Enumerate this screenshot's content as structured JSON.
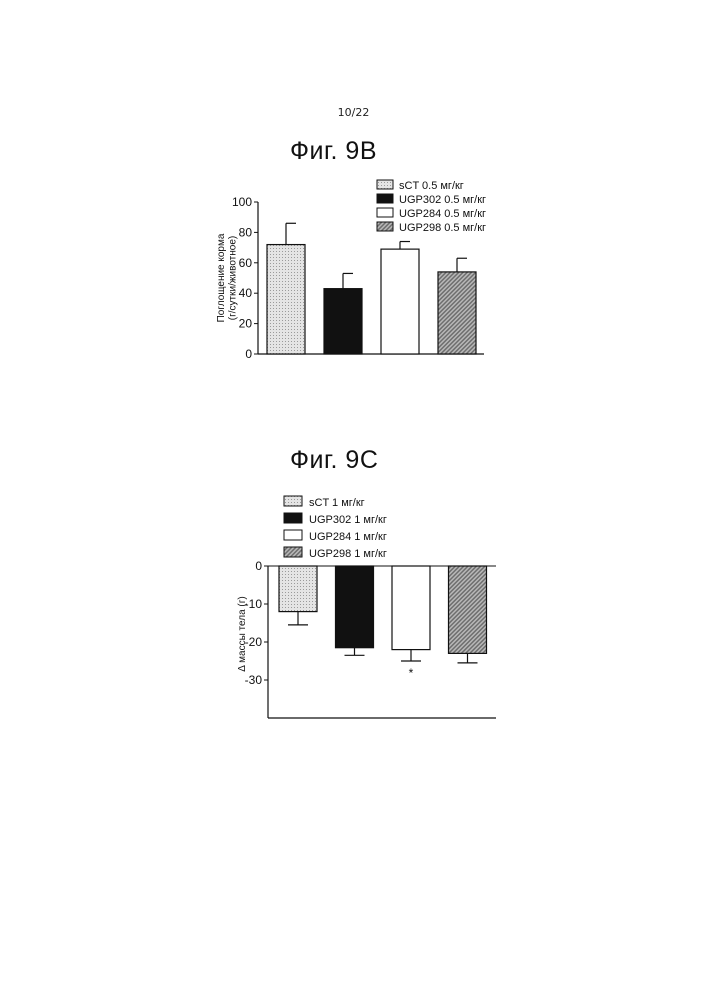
{
  "page_number": "10/22",
  "chart_data": [
    {
      "type": "bar",
      "title": "Фиг. 9B",
      "ylabel": "Поглощение корма (г/сутки/животное)",
      "xlabel": "",
      "categories": [
        "sCT 0.5 мг/кг",
        "UGP302 0.5 мг/кг",
        "UGP284 0.5 мг/кг",
        "UGP298 0.5 мг/кг"
      ],
      "legend": [
        "sCT 0.5 мг/кг",
        "UGP302 0.5 мг/кг",
        "UGP284 0.5 мг/кг",
        "UGP298 0.5 мг/кг"
      ],
      "legend_position": "top-right",
      "values": [
        72,
        43,
        69,
        54
      ],
      "error": [
        14,
        10,
        5,
        9
      ],
      "ylim": [
        0,
        100
      ],
      "yticks": [
        0,
        20,
        40,
        60,
        80,
        100
      ],
      "grid": false,
      "annotations": []
    },
    {
      "type": "bar",
      "title": "Фиг. 9C",
      "ylabel": "Δ массы тела (г)",
      "xlabel": "",
      "categories": [
        "sCT 1 мг/кг",
        "UGP302 1 мг/кг",
        "UGP284 1 мг/кг",
        "UGP298 1 мг/кг"
      ],
      "legend": [
        "sCT 1 мг/кг",
        "UGP302 1 мг/кг",
        "UGP284 1 мг/кг",
        "UGP298 1 мг/кг"
      ],
      "legend_position": "top-left",
      "values": [
        -12,
        -21.5,
        -22,
        -23
      ],
      "error": [
        3.5,
        2,
        3,
        2.5
      ],
      "ylim": [
        -40,
        0
      ],
      "yticks": [
        0,
        -10,
        -20,
        -30
      ],
      "grid": false,
      "annotations": [
        "*"
      ]
    }
  ],
  "colors": {
    "sct": "#dcdcdc",
    "ugp302": "#111111",
    "ugp284": "#ffffff",
    "ugp298": "#a0a0a0"
  }
}
